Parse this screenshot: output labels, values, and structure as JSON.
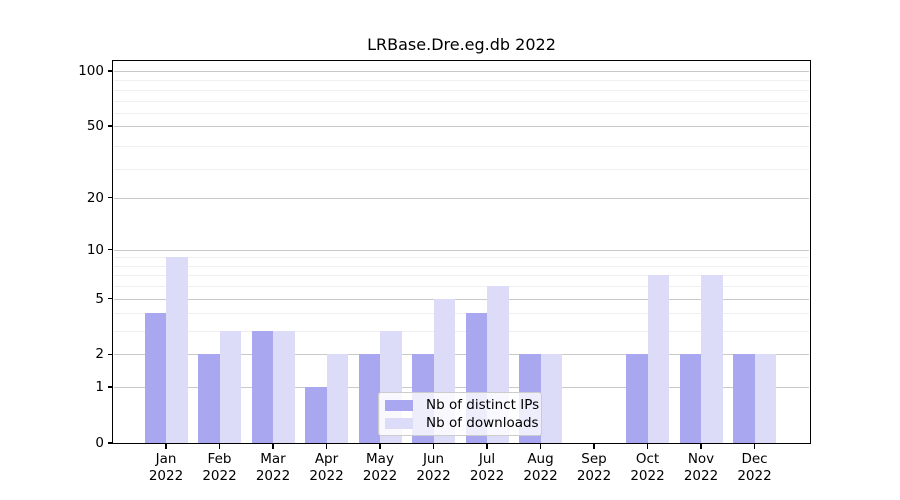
{
  "chart_data": {
    "type": "bar",
    "title": "LRBase.Dre.eg.db 2022",
    "categories": [
      "Jan",
      "Feb",
      "Mar",
      "Apr",
      "May",
      "Jun",
      "Jul",
      "Aug",
      "Sep",
      "Oct",
      "Nov",
      "Dec"
    ],
    "year": "2022",
    "series": [
      {
        "name": "Nb of distinct IPs",
        "color": "#a8a7f0",
        "values": [
          4,
          2,
          3,
          1,
          2,
          2,
          4,
          2,
          0,
          2,
          2,
          2
        ]
      },
      {
        "name": "Nb of downloads",
        "color": "#dcdbf8",
        "values": [
          9,
          3,
          3,
          2,
          3,
          5,
          6,
          2,
          0,
          7,
          7,
          2
        ]
      }
    ],
    "xlabel": "",
    "ylabel": "",
    "y_ticks": [
      0,
      1,
      2,
      5,
      10,
      20,
      50,
      100
    ],
    "ylim": [
      0,
      100
    ],
    "y_scale": "log10(1+v)",
    "grid": "horizontal",
    "legend_position": "inside-bottom-center"
  }
}
